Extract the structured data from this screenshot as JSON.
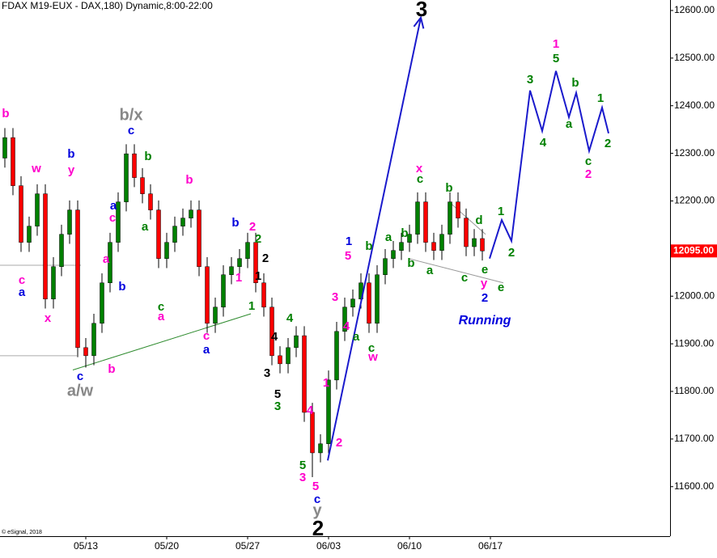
{
  "chart_data": {
    "type": "candlestick",
    "title": "FDAX M19-EUX - DAX,180) Dynamic,8:00-22:00",
    "copyright": "© eSignal, 2018",
    "xlim": [
      -0.6,
      82.2
    ],
    "ylim": [
      11496,
      12622
    ],
    "xticks": [
      {
        "value": 10,
        "label": "05/13"
      },
      {
        "value": 20,
        "label": "05/20"
      },
      {
        "value": 30,
        "label": "05/27"
      },
      {
        "value": 40,
        "label": "06/03"
      },
      {
        "value": 50,
        "label": "06/10"
      },
      {
        "value": 60,
        "label": "06/17"
      }
    ],
    "yticks": [
      {
        "value": 12600,
        "label": "12600.00"
      },
      {
        "value": 12500,
        "label": "12500.00"
      },
      {
        "value": 12400,
        "label": "12400.00"
      },
      {
        "value": 12300,
        "label": "12300.00"
      },
      {
        "value": 12200,
        "label": "12200.00"
      },
      {
        "value": 12000,
        "label": "12000.00"
      },
      {
        "value": 11900,
        "label": "11900.00"
      },
      {
        "value": 11800,
        "label": "11800.00"
      },
      {
        "value": 11700,
        "label": "11700.00"
      },
      {
        "value": 11600,
        "label": "11600.00"
      }
    ],
    "last_price": {
      "value": 12095,
      "label": "12095.00",
      "color": "#ff0000"
    },
    "up_color": "#008000",
    "down_color": "#ff0000",
    "candles": {
      "open": [
        12290,
        12333,
        12232,
        12113,
        12147,
        12215,
        11994,
        12062,
        12130,
        12181,
        11892,
        11875,
        11943,
        12028,
        12113,
        12198,
        12299,
        12249,
        12215,
        12181,
        12079,
        12113,
        12147,
        12164,
        12181,
        12062,
        11943,
        11977,
        12045,
        12062,
        12079,
        12113,
        12028,
        11977,
        11875,
        11858,
        11892,
        11917,
        11756,
        11671,
        11690,
        11824,
        11926,
        11977,
        11994,
        12028,
        11943,
        12045,
        12079,
        12096,
        12113,
        12130,
        12198,
        12113,
        12096,
        12130,
        12198,
        12164,
        12104,
        12121
      ],
      "high": [
        12353,
        12353,
        12252,
        12167,
        12235,
        12235,
        12082,
        12150,
        12201,
        12201,
        11912,
        11963,
        12048,
        12133,
        12218,
        12319,
        12319,
        12269,
        12235,
        12201,
        12133,
        12167,
        12184,
        12201,
        12201,
        12082,
        11997,
        12065,
        12082,
        12099,
        12133,
        12133,
        12048,
        11997,
        11895,
        11912,
        11937,
        11937,
        11776,
        11710,
        11844,
        11946,
        11997,
        12014,
        12048,
        12048,
        12065,
        12099,
        12116,
        12133,
        12150,
        12218,
        12218,
        12133,
        12150,
        12218,
        12218,
        12184,
        12141,
        12141
      ],
      "low": [
        12270,
        12212,
        12093,
        12093,
        12127,
        11974,
        11974,
        12042,
        12110,
        11872,
        11850,
        11855,
        11923,
        12008,
        12093,
        12178,
        12229,
        12195,
        12161,
        12059,
        12059,
        12093,
        12127,
        12144,
        12042,
        11923,
        11923,
        11957,
        12025,
        12042,
        12059,
        12008,
        11957,
        11855,
        11838,
        11838,
        11872,
        11736,
        11620,
        11651,
        11670,
        11804,
        11906,
        11957,
        11974,
        11923,
        11923,
        12025,
        12059,
        12076,
        12093,
        12110,
        12093,
        12076,
        12076,
        12110,
        12144,
        12084,
        12084,
        12075
      ],
      "close": [
        12333,
        12232,
        12113,
        12147,
        12215,
        11994,
        12062,
        12130,
        12181,
        11892,
        11875,
        11943,
        12028,
        12113,
        12198,
        12299,
        12249,
        12215,
        12181,
        12079,
        12113,
        12147,
        12164,
        12181,
        12062,
        11943,
        11977,
        12045,
        12062,
        12079,
        12113,
        12028,
        11977,
        11875,
        11858,
        11892,
        11917,
        11756,
        11671,
        11690,
        11824,
        11926,
        11977,
        11994,
        12028,
        11943,
        12045,
        12079,
        12096,
        12113,
        12130,
        12198,
        12113,
        12096,
        12130,
        12198,
        12164,
        12104,
        12121,
        12095
      ]
    },
    "projections": [
      {
        "color": "#1a1acc",
        "x": [
          39.9,
          51.4
        ],
        "y": [
          11655,
          12585
        ]
      },
      {
        "color": "#1a1acc",
        "x": [
          59.9,
          61.4,
          62.6,
          64.9,
          66.4,
          68.1,
          69.7,
          70.6,
          72.2,
          73.8,
          74.6
        ],
        "y": [
          12079,
          12160,
          12116,
          12432,
          12347,
          12473,
          12376,
          12427,
          12305,
          12396,
          12342
        ]
      }
    ],
    "trendlines": [
      {
        "color": "#2e8b2e",
        "x": [
          8.4,
          30.4
        ],
        "y": [
          11845,
          11963
        ]
      },
      {
        "color": "#999999",
        "x": [
          54.9,
          59.4
        ],
        "y": [
          12198,
          12130
        ]
      },
      {
        "color": "#999999",
        "x": [
          49.9,
          61.6
        ],
        "y": [
          12079,
          12028
        ]
      },
      {
        "color": "#aaaaaa",
        "x": [
          -0.6,
          9.4
        ],
        "y": [
          12065,
          12065
        ]
      },
      {
        "color": "#aaaaaa",
        "x": [
          -0.6,
          8.9
        ],
        "y": [
          11875,
          11875
        ]
      }
    ],
    "annotations": [
      {
        "text": "b",
        "color": "#ff00cc"
      },
      {
        "text": "w",
        "color": "#ff00cc"
      },
      {
        "text": "b",
        "color": "#0000dd"
      },
      {
        "text": "y",
        "color": "#ff00cc"
      },
      {
        "text": "c",
        "color": "#ff00cc"
      },
      {
        "text": "a",
        "color": "#0000dd"
      },
      {
        "text": "x",
        "color": "#ff00cc"
      },
      {
        "text": "c",
        "color": "#0000dd"
      },
      {
        "text": "a/w",
        "color": "#888888"
      },
      {
        "text": "b",
        "color": "#ff00cc"
      },
      {
        "text": "b/x",
        "color": "#888888"
      },
      {
        "text": "c",
        "color": "#0000dd"
      },
      {
        "text": "b",
        "color": "#008000"
      },
      {
        "text": "a",
        "color": "#0000dd"
      },
      {
        "text": "c",
        "color": "#ff00cc"
      },
      {
        "text": "a",
        "color": "#ff00cc"
      },
      {
        "text": "b",
        "color": "#0000dd"
      },
      {
        "text": "a",
        "color": "#008000"
      },
      {
        "text": "c",
        "color": "#008000"
      },
      {
        "text": "a",
        "color": "#ff00cc"
      },
      {
        "text": "b",
        "color": "#ff00cc"
      },
      {
        "text": "b",
        "color": "#0000dd"
      },
      {
        "text": "2",
        "color": "#ff00cc"
      },
      {
        "text": "2",
        "color": "#008000"
      },
      {
        "text": "2",
        "color": "#000000"
      },
      {
        "text": "1",
        "color": "#000000"
      },
      {
        "text": "1",
        "color": "#ff00cc"
      },
      {
        "text": "1",
        "color": "#008000"
      },
      {
        "text": "c",
        "color": "#ff00cc"
      },
      {
        "text": "a",
        "color": "#0000dd"
      },
      {
        "text": "4",
        "color": "#008000"
      },
      {
        "text": "4",
        "color": "#000000"
      },
      {
        "text": "3",
        "color": "#000000"
      },
      {
        "text": "5",
        "color": "#000000"
      },
      {
        "text": "3",
        "color": "#008000"
      },
      {
        "text": "4",
        "color": "#ff00cc"
      },
      {
        "text": "1",
        "color": "#ff00cc"
      },
      {
        "text": "2",
        "color": "#ff00cc"
      },
      {
        "text": "5",
        "color": "#008000"
      },
      {
        "text": "3",
        "color": "#ff00cc"
      },
      {
        "text": "5",
        "color": "#ff00cc"
      },
      {
        "text": "c",
        "color": "#0000dd"
      },
      {
        "text": "y",
        "color": "#888888"
      },
      {
        "text": "2",
        "color": "#000000"
      },
      {
        "text": "3",
        "color": "#000000"
      },
      {
        "text": "3",
        "color": "#ff00cc"
      },
      {
        "text": "4",
        "color": "#ff00cc"
      },
      {
        "text": "a",
        "color": "#008000"
      },
      {
        "text": "1",
        "color": "#0000dd"
      },
      {
        "text": "5",
        "color": "#ff00cc"
      },
      {
        "text": "b",
        "color": "#008000"
      },
      {
        "text": "a",
        "color": "#008000"
      },
      {
        "text": "b",
        "color": "#008000"
      },
      {
        "text": "c",
        "color": "#008000"
      },
      {
        "text": "w",
        "color": "#ff00cc"
      },
      {
        "text": "b",
        "color": "#008000"
      },
      {
        "text": "x",
        "color": "#ff00cc"
      },
      {
        "text": "c",
        "color": "#008000"
      },
      {
        "text": "a",
        "color": "#008000"
      },
      {
        "text": "b",
        "color": "#008000"
      },
      {
        "text": "c",
        "color": "#008000"
      },
      {
        "text": "d",
        "color": "#008000"
      },
      {
        "text": "e",
        "color": "#008000"
      },
      {
        "text": "y",
        "color": "#ff00cc"
      },
      {
        "text": "e",
        "color": "#008000"
      },
      {
        "text": "2",
        "color": "#0000dd"
      },
      {
        "text": "1",
        "color": "#008000"
      },
      {
        "text": "2",
        "color": "#008000"
      },
      {
        "text": "Running",
        "color": "#0000dd"
      },
      {
        "text": "1",
        "color": "#ff00cc"
      },
      {
        "text": "5",
        "color": "#008000"
      },
      {
        "text": "3",
        "color": "#008000"
      },
      {
        "text": "b",
        "color": "#008000"
      },
      {
        "text": "1",
        "color": "#008000"
      },
      {
        "text": "a",
        "color": "#008000"
      },
      {
        "text": "4",
        "color": "#008000"
      },
      {
        "text": "2",
        "color": "#008000"
      },
      {
        "text": "c",
        "color": "#008000"
      },
      {
        "text": "2",
        "color": "#ff00cc"
      }
    ]
  }
}
